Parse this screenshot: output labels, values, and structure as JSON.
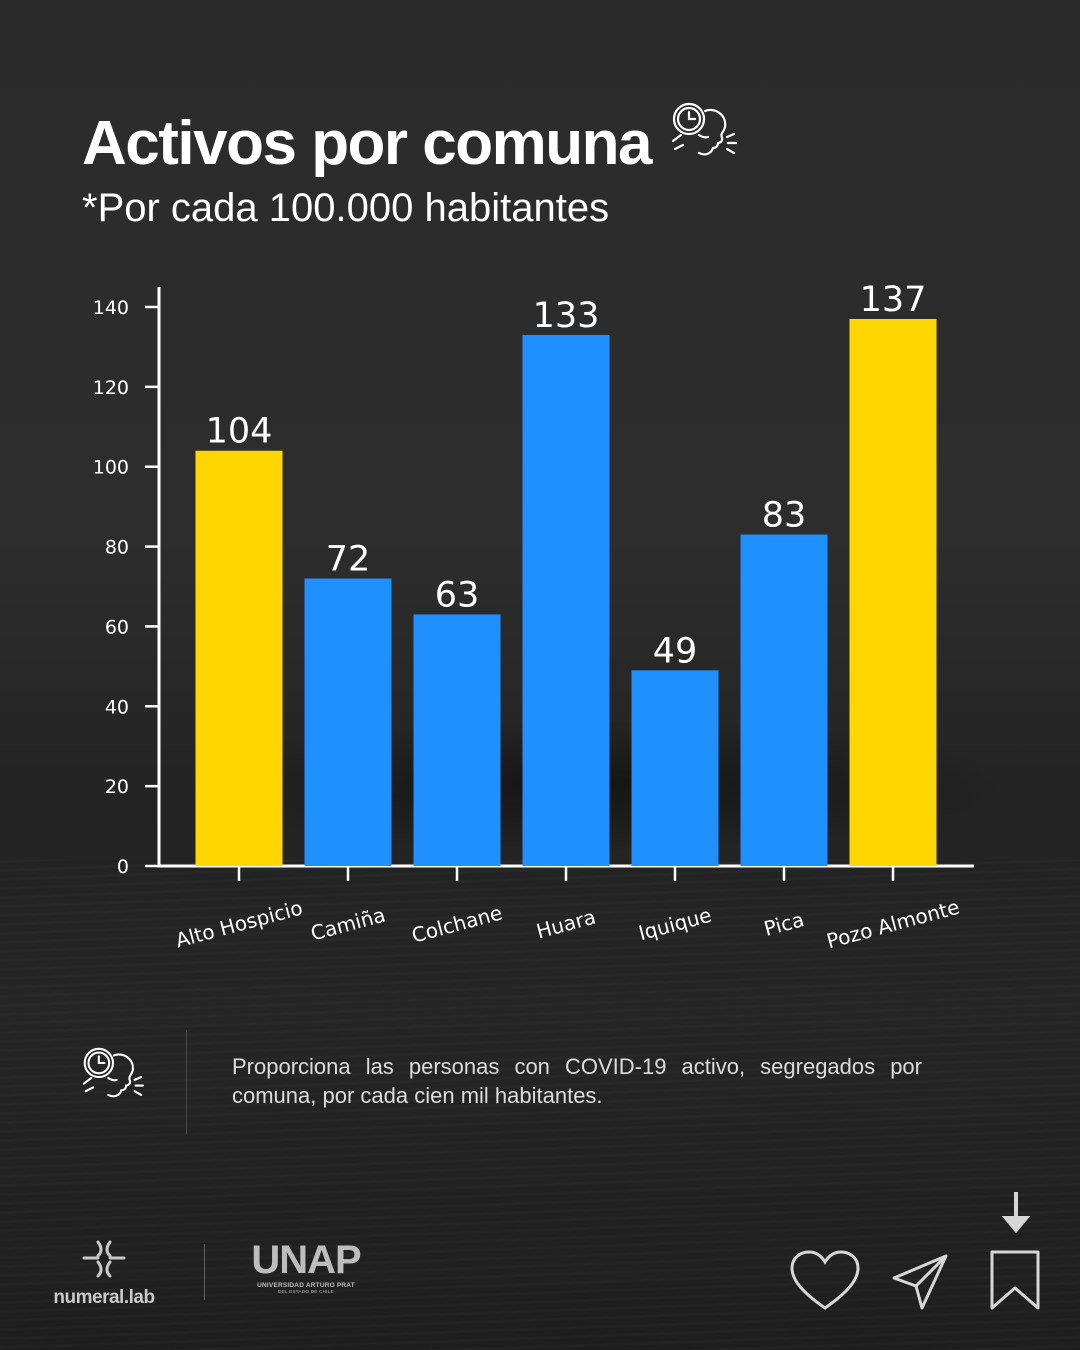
{
  "header": {
    "title": "Activos por comuna",
    "subtitle_prefix": "*Por cada ",
    "subtitle_number": "100.000",
    "subtitle_suffix": " habitantes",
    "title_icon": "person-clock-cough-icon"
  },
  "chart_data": {
    "type": "bar",
    "title": "",
    "xlabel": "",
    "ylabel": "",
    "categories": [
      "Alto Hospicio",
      "Camiña",
      "Colchane",
      "Huara",
      "Iquique",
      "Pica",
      "Pozo Almonte"
    ],
    "values": [
      104,
      72,
      63,
      133,
      49,
      83,
      137
    ],
    "bar_colors": [
      "#FFD700",
      "#1E90FF",
      "#1E90FF",
      "#1E90FF",
      "#1E90FF",
      "#1E90FF",
      "#FFD700"
    ],
    "ylim": [
      0,
      140
    ],
    "yticks": [
      0,
      20,
      40,
      60,
      80,
      100,
      120,
      140
    ],
    "grid": false,
    "data_labels": true,
    "xtick_rotation_deg": 15
  },
  "description": {
    "text": "Proporciona las personas con COVID-19 activo, segregados por comuna, por cada cien mil habitantes.",
    "icon": "person-clock-cough-icon"
  },
  "footer": {
    "brand_1": "numeral.lab",
    "brand_2_name": "UNAP",
    "brand_2_sub": "UNIVERSIDAD ARTURO PRAT",
    "brand_2_sub2": "DEL ESTADO DE CHILE",
    "actions": [
      "heart-icon",
      "send-icon",
      "bookmark-icon",
      "arrow-down-icon"
    ]
  },
  "colors": {
    "highlight": "#FFD700",
    "bar": "#1E90FF",
    "text": "#FFFFFF"
  }
}
